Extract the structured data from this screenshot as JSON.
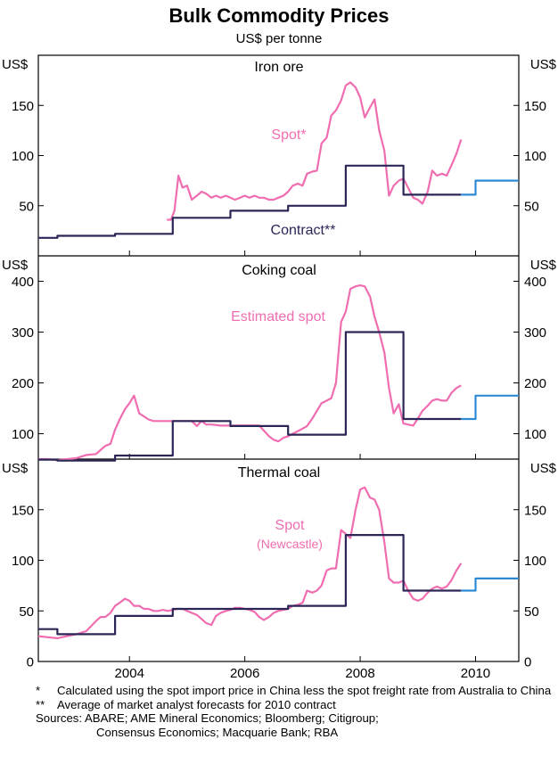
{
  "title": "Bulk Commodity Prices",
  "subtitle": "US$ per tonne",
  "colors": {
    "spot": "#ef6db0",
    "contract": "#2a2757",
    "forecast": "#2f8ad4"
  },
  "chart_data": [
    {
      "type": "line",
      "panel_title": "Iron ore",
      "unit_left": "US$",
      "unit_right": "US$",
      "ylim": [
        0,
        200
      ],
      "yticks": [
        50,
        100,
        150
      ],
      "spot_label": "Spot*",
      "contract_label": "Contract**",
      "series": [
        {
          "name": "Spot*",
          "x": [
            2004.65,
            2004.72,
            2004.78,
            2004.85,
            2004.92,
            2005.0,
            2005.08,
            2005.17,
            2005.25,
            2005.33,
            2005.42,
            2005.5,
            2005.58,
            2005.67,
            2005.75,
            2005.83,
            2005.92,
            2006.0,
            2006.08,
            2006.17,
            2006.25,
            2006.33,
            2006.42,
            2006.5,
            2006.58,
            2006.67,
            2006.75,
            2006.83,
            2006.92,
            2007.0,
            2007.08,
            2007.17,
            2007.25,
            2007.33,
            2007.42,
            2007.5,
            2007.58,
            2007.67,
            2007.75,
            2007.83,
            2007.92,
            2008.0,
            2008.08,
            2008.17,
            2008.25,
            2008.33,
            2008.42,
            2008.5,
            2008.58,
            2008.67,
            2008.75,
            2008.83,
            2008.92,
            2009.0,
            2009.08,
            2009.17,
            2009.25,
            2009.33,
            2009.42,
            2009.5,
            2009.58,
            2009.67,
            2009.75
          ],
          "y": [
            36,
            36,
            45,
            80,
            68,
            70,
            56,
            60,
            64,
            62,
            58,
            60,
            58,
            60,
            58,
            56,
            58,
            60,
            58,
            60,
            58,
            58,
            56,
            56,
            58,
            60,
            64,
            70,
            72,
            70,
            82,
            84,
            85,
            112,
            118,
            140,
            145,
            155,
            170,
            173,
            168,
            158,
            138,
            148,
            156,
            125,
            105,
            60,
            70,
            75,
            77,
            68,
            58,
            56,
            52,
            64,
            85,
            80,
            82,
            80,
            90,
            102,
            116
          ]
        },
        {
          "name": "Contract**",
          "x": [
            2002.42,
            2002.75,
            2002.75,
            2003.75,
            2003.75,
            2004.75,
            2004.75,
            2005.75,
            2005.75,
            2006.75,
            2006.75,
            2007.75,
            2007.75,
            2008.75,
            2008.75,
            2009.75
          ],
          "y": [
            18,
            18,
            20,
            20,
            22,
            22,
            38,
            38,
            45,
            45,
            50,
            50,
            90,
            90,
            61,
            61
          ]
        },
        {
          "name": "Forecast",
          "x": [
            2009.75,
            2010.0,
            2010.0,
            2010.75
          ],
          "y": [
            61,
            61,
            75,
            75
          ]
        }
      ]
    },
    {
      "type": "line",
      "panel_title": "Coking coal",
      "unit_left": "US$",
      "unit_right": "US$",
      "ylim": [
        50,
        450
      ],
      "yticks": [
        100,
        200,
        300,
        400
      ],
      "spot_label": "Estimated spot",
      "series": [
        {
          "name": "Estimated spot",
          "x": [
            2002.42,
            2002.58,
            2002.75,
            2002.92,
            2003.08,
            2003.25,
            2003.42,
            2003.5,
            2003.58,
            2003.67,
            2003.75,
            2003.83,
            2003.92,
            2004.0,
            2004.08,
            2004.17,
            2004.25,
            2004.33,
            2004.42,
            2004.58,
            2004.75,
            2004.92,
            2005.08,
            2005.17,
            2005.25,
            2005.33,
            2005.42,
            2005.58,
            2005.75,
            2005.92,
            2006.08,
            2006.25,
            2006.42,
            2006.5,
            2006.58,
            2006.67,
            2006.75,
            2006.83,
            2006.92,
            2007.0,
            2007.08,
            2007.17,
            2007.25,
            2007.33,
            2007.42,
            2007.5,
            2007.58,
            2007.67,
            2007.75,
            2007.83,
            2007.92,
            2008.0,
            2008.08,
            2008.17,
            2008.25,
            2008.33,
            2008.42,
            2008.5,
            2008.58,
            2008.67,
            2008.75,
            2008.83,
            2008.92,
            2009.0,
            2009.08,
            2009.17,
            2009.25,
            2009.33,
            2009.42,
            2009.5,
            2009.58,
            2009.67,
            2009.75
          ],
          "y": [
            50,
            50,
            48,
            50,
            52,
            58,
            60,
            68,
            76,
            80,
            108,
            128,
            148,
            160,
            175,
            140,
            134,
            128,
            125,
            125,
            125,
            125,
            125,
            115,
            125,
            118,
            118,
            116,
            116,
            116,
            116,
            116,
            95,
            88,
            85,
            92,
            95,
            100,
            105,
            110,
            115,
            130,
            145,
            160,
            165,
            170,
            200,
            320,
            340,
            385,
            390,
            392,
            390,
            370,
            330,
            300,
            260,
            190,
            140,
            158,
            120,
            118,
            116,
            130,
            145,
            155,
            165,
            168,
            165,
            165,
            180,
            190,
            195
          ]
        },
        {
          "name": "Contract",
          "x": [
            2002.42,
            2002.75,
            2002.75,
            2003.75,
            2003.75,
            2004.75,
            2004.75,
            2005.75,
            2005.75,
            2006.75,
            2006.75,
            2007.75,
            2007.75,
            2008.75,
            2008.75,
            2009.75
          ],
          "y": [
            49,
            49,
            47,
            47,
            57,
            57,
            125,
            125,
            115,
            115,
            98,
            98,
            300,
            300,
            129,
            129
          ]
        },
        {
          "name": "Forecast",
          "x": [
            2009.75,
            2010.0,
            2010.0,
            2010.75
          ],
          "y": [
            129,
            129,
            175,
            175
          ]
        }
      ]
    },
    {
      "type": "line",
      "panel_title": "Thermal coal",
      "unit_left": "US$",
      "unit_right": "US$",
      "ylim": [
        0,
        200
      ],
      "yticks": [
        0,
        50,
        100,
        150
      ],
      "spot_label": "Spot",
      "spot_sublabel": "(Newcastle)",
      "series": [
        {
          "name": "Spot",
          "x": [
            2002.42,
            2002.58,
            2002.75,
            2002.92,
            2003.08,
            2003.25,
            2003.42,
            2003.5,
            2003.58,
            2003.67,
            2003.75,
            2003.83,
            2003.92,
            2004.0,
            2004.08,
            2004.17,
            2004.25,
            2004.33,
            2004.42,
            2004.5,
            2004.58,
            2004.67,
            2004.75,
            2004.83,
            2004.92,
            2005.0,
            2005.08,
            2005.17,
            2005.25,
            2005.33,
            2005.42,
            2005.5,
            2005.58,
            2005.67,
            2005.75,
            2005.83,
            2005.92,
            2006.0,
            2006.08,
            2006.17,
            2006.25,
            2006.33,
            2006.42,
            2006.5,
            2006.58,
            2006.67,
            2006.75,
            2006.83,
            2006.92,
            2007.0,
            2007.08,
            2007.17,
            2007.25,
            2007.33,
            2007.42,
            2007.5,
            2007.58,
            2007.67,
            2007.75,
            2007.83,
            2007.92,
            2008.0,
            2008.08,
            2008.17,
            2008.25,
            2008.33,
            2008.42,
            2008.5,
            2008.58,
            2008.67,
            2008.75,
            2008.83,
            2008.92,
            2009.0,
            2009.08,
            2009.17,
            2009.25,
            2009.33,
            2009.42,
            2009.5,
            2009.58,
            2009.67,
            2009.75
          ],
          "y": [
            25,
            24,
            23,
            25,
            27,
            30,
            40,
            44,
            44,
            48,
            55,
            58,
            62,
            60,
            55,
            55,
            52,
            52,
            50,
            50,
            51,
            50,
            51,
            52,
            52,
            50,
            48,
            46,
            42,
            38,
            36,
            45,
            48,
            50,
            51,
            53,
            53,
            52,
            51,
            49,
            44,
            41,
            44,
            48,
            50,
            51,
            52,
            55,
            56,
            58,
            70,
            68,
            70,
            75,
            90,
            92,
            92,
            130,
            126,
            122,
            150,
            170,
            172,
            162,
            160,
            150,
            118,
            82,
            78,
            78,
            80,
            70,
            62,
            60,
            62,
            68,
            72,
            74,
            72,
            74,
            80,
            90,
            97
          ]
        },
        {
          "name": "Contract",
          "x": [
            2002.42,
            2002.75,
            2002.75,
            2003.75,
            2003.75,
            2004.75,
            2004.75,
            2005.75,
            2005.75,
            2006.75,
            2006.75,
            2007.75,
            2007.75,
            2008.75,
            2008.75,
            2009.75
          ],
          "y": [
            32,
            32,
            27,
            27,
            45,
            45,
            52,
            52,
            52,
            52,
            55,
            55,
            125,
            125,
            70,
            70
          ]
        },
        {
          "name": "Forecast",
          "x": [
            2009.75,
            2010.0,
            2010.0,
            2010.75
          ],
          "y": [
            70,
            70,
            82,
            82
          ]
        }
      ]
    }
  ],
  "x_axis": {
    "xlim": [
      2002.42,
      2010.75
    ],
    "ticks": [
      2004,
      2006,
      2008,
      2010
    ],
    "tick_labels": [
      "2004",
      "2006",
      "2008",
      "2010"
    ]
  },
  "notes": [
    {
      "mark": "*",
      "text": "Calculated using the spot import price in China less the spot freight rate from Australia to China"
    },
    {
      "mark": "**",
      "text": "Average of market analyst forecasts for 2010 contract"
    }
  ],
  "sources": {
    "label": "Sources:",
    "line1": "ABARE; AME Mineral Economics; Bloomberg; Citigroup;",
    "line2": "Consensus Economics; Macquarie Bank; RBA"
  }
}
